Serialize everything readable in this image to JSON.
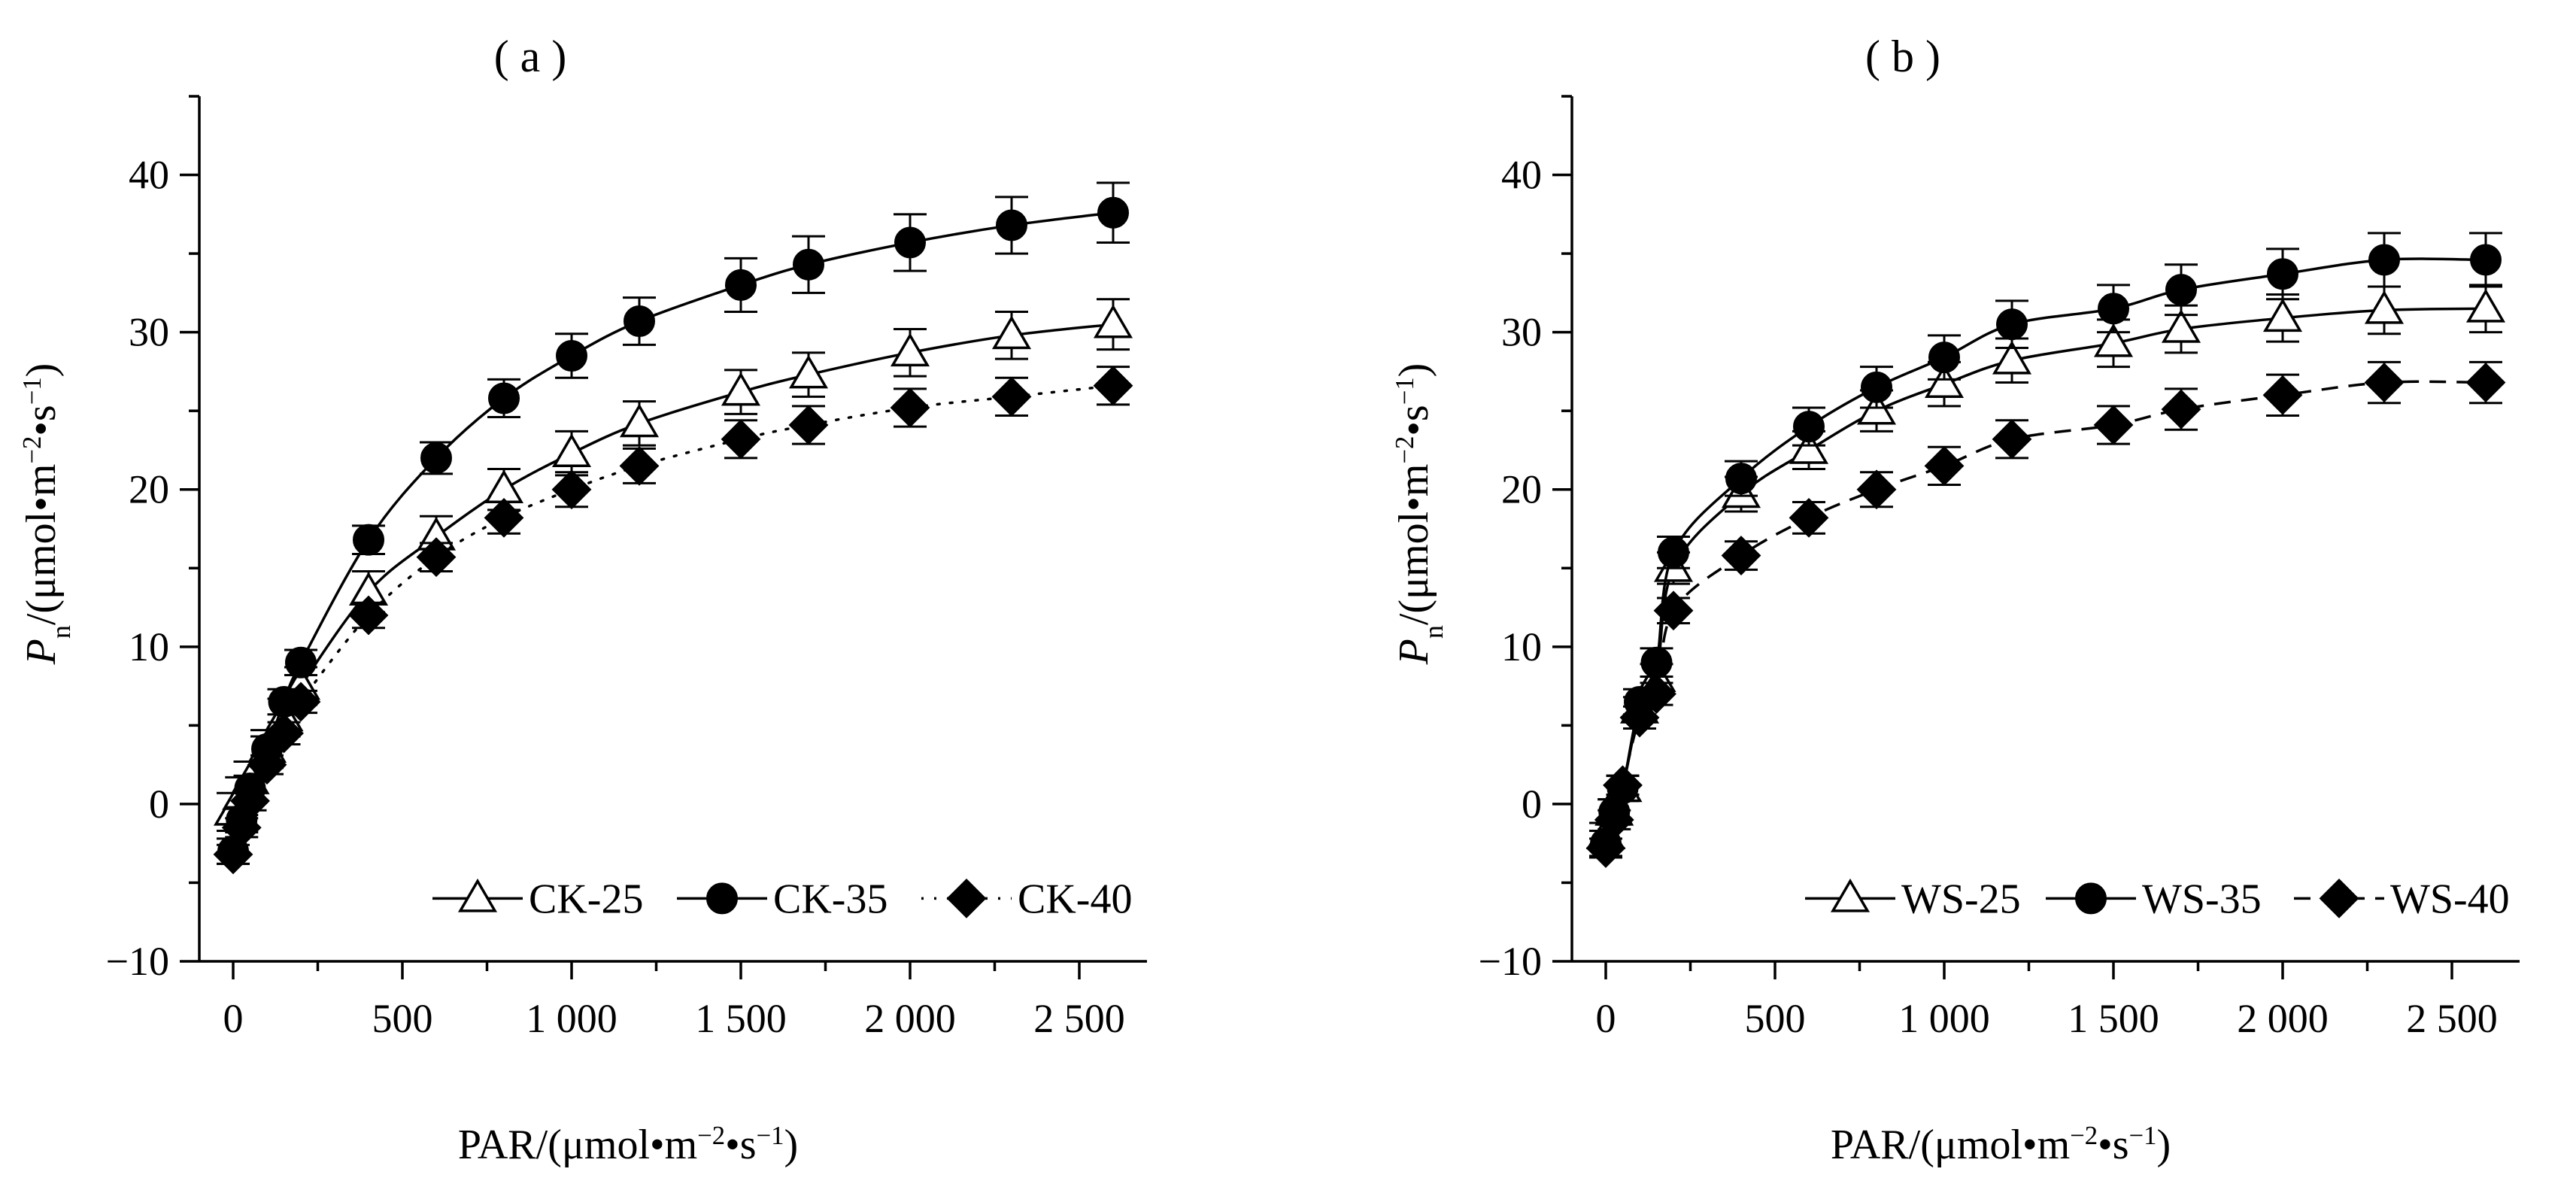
{
  "colors": {
    "ink": "#000000",
    "open_marker_fill": "#ffffff"
  },
  "markers": {
    "25": "triangle-open",
    "35": "circle-filled",
    "40": "diamond-filled"
  },
  "chart_data": [
    {
      "type": "line",
      "panel_label": "( a )",
      "x_label": {
        "base": "PAR/(μmol•m",
        "exp1": "−2",
        "mid": "•s",
        "exp2": "−1",
        "close": ")"
      },
      "y_label": {
        "italic": "P",
        "sub": "n",
        "rest": "/(μmol•m",
        "exp1": "−2",
        "mid": "•s",
        "exp2": "−1",
        "close": ")"
      },
      "xlim": [
        -100,
        2700
      ],
      "ylim": [
        -10,
        45
      ],
      "x_ticks": [
        0,
        500,
        1000,
        1500,
        2000,
        2500
      ],
      "x_tick_labels": [
        "0",
        "500",
        "1 000",
        "1 500",
        "2 000",
        "2 500"
      ],
      "y_ticks": [
        -10,
        0,
        10,
        20,
        30,
        40
      ],
      "y_tick_labels": [
        "−10",
        "0",
        "10",
        "20",
        "30",
        "40"
      ],
      "legend_position": "bottom-right",
      "series": [
        {
          "name": "CK-25",
          "key": "25",
          "line_style": "solid",
          "x": [
            0,
            25,
            50,
            100,
            150,
            200,
            400,
            600,
            800,
            1000,
            1200,
            1500,
            1700,
            2000,
            2300,
            2600
          ],
          "y": [
            -0.5,
            0.5,
            1.5,
            3.5,
            5.5,
            7.5,
            13.5,
            17.0,
            20.0,
            22.3,
            24.2,
            26.2,
            27.3,
            28.7,
            29.8,
            30.5
          ],
          "err": [
            1.2,
            1.2,
            1.2,
            1.2,
            1.2,
            1.2,
            1.3,
            1.3,
            1.3,
            1.4,
            1.4,
            1.4,
            1.4,
            1.5,
            1.5,
            1.6
          ]
        },
        {
          "name": "CK-35",
          "key": "35",
          "line_style": "solid",
          "x": [
            0,
            25,
            50,
            100,
            150,
            200,
            400,
            600,
            800,
            1000,
            1200,
            1500,
            1700,
            2000,
            2300,
            2600
          ],
          "y": [
            -3.0,
            -1.0,
            1.0,
            3.5,
            6.5,
            9.0,
            16.8,
            22.0,
            25.8,
            28.5,
            30.7,
            33.0,
            34.3,
            35.7,
            36.8,
            37.6
          ],
          "err": [
            0.8,
            0.8,
            0.8,
            0.8,
            0.8,
            0.8,
            0.9,
            1.0,
            1.2,
            1.4,
            1.5,
            1.7,
            1.8,
            1.8,
            1.8,
            1.9
          ]
        },
        {
          "name": "CK-40",
          "key": "40",
          "line_style": "dotted",
          "x": [
            0,
            25,
            50,
            100,
            150,
            200,
            400,
            600,
            800,
            1000,
            1200,
            1500,
            1700,
            2000,
            2300,
            2600
          ],
          "y": [
            -3.2,
            -1.5,
            0.2,
            2.5,
            4.5,
            6.5,
            12.0,
            15.7,
            18.2,
            20.0,
            21.5,
            23.2,
            24.1,
            25.2,
            25.9,
            26.6
          ],
          "err": [
            0.6,
            0.6,
            0.6,
            0.6,
            0.7,
            0.7,
            0.8,
            0.9,
            1.0,
            1.1,
            1.1,
            1.2,
            1.2,
            1.2,
            1.2,
            1.2
          ]
        }
      ]
    },
    {
      "type": "line",
      "panel_label": "( b )",
      "x_label": {
        "base": "PAR/(μmol•m",
        "exp1": "−2",
        "mid": "•s",
        "exp2": "−1",
        "close": ")"
      },
      "y_label": {
        "italic": "P",
        "sub": "n",
        "rest": "/(μmol•m",
        "exp1": "−2",
        "mid": "•s",
        "exp2": "−1",
        "close": ")"
      },
      "xlim": [
        -100,
        2700
      ],
      "ylim": [
        -10,
        45
      ],
      "x_ticks": [
        0,
        500,
        1000,
        1500,
        2000,
        2500
      ],
      "x_tick_labels": [
        "0",
        "500",
        "1 000",
        "1 500",
        "2 000",
        "2 500"
      ],
      "y_ticks": [
        -10,
        0,
        10,
        20,
        30,
        40
      ],
      "y_tick_labels": [
        "−10",
        "0",
        "10",
        "20",
        "30",
        "40"
      ],
      "legend_position": "bottom-right",
      "series": [
        {
          "name": "WS-25",
          "key": "25",
          "line_style": "solid",
          "x": [
            0,
            25,
            50,
            100,
            150,
            200,
            400,
            600,
            800,
            1000,
            1200,
            1500,
            1700,
            2000,
            2300,
            2600
          ],
          "y": [
            -2.0,
            -0.5,
            1.0,
            6.0,
            8.0,
            15.0,
            19.7,
            22.5,
            25.0,
            26.7,
            28.2,
            29.3,
            30.2,
            30.9,
            31.4,
            31.5
          ],
          "err": [
            0.8,
            0.8,
            0.8,
            0.8,
            0.9,
            1.0,
            1.1,
            1.2,
            1.3,
            1.4,
            1.4,
            1.5,
            1.5,
            1.5,
            1.5,
            1.5
          ]
        },
        {
          "name": "WS-35",
          "key": "35",
          "line_style": "solid",
          "x": [
            0,
            25,
            50,
            100,
            150,
            200,
            400,
            600,
            800,
            1000,
            1200,
            1500,
            1700,
            2000,
            2300,
            2600
          ],
          "y": [
            -2.5,
            -0.5,
            1.0,
            6.5,
            9.0,
            16.0,
            20.7,
            24.0,
            26.5,
            28.4,
            30.5,
            31.5,
            32.7,
            33.7,
            34.6,
            34.6
          ],
          "err": [
            0.8,
            0.8,
            0.8,
            0.8,
            0.9,
            1.0,
            1.1,
            1.2,
            1.3,
            1.4,
            1.5,
            1.5,
            1.6,
            1.6,
            1.7,
            1.7
          ]
        },
        {
          "name": "WS-40",
          "key": "40",
          "line_style": "dashed",
          "x": [
            0,
            25,
            50,
            100,
            150,
            200,
            400,
            600,
            800,
            1000,
            1200,
            1500,
            1700,
            2000,
            2300,
            2600
          ],
          "y": [
            -2.8,
            -1.0,
            1.2,
            5.5,
            7.0,
            12.3,
            15.8,
            18.2,
            20.0,
            21.5,
            23.2,
            24.1,
            25.1,
            26.0,
            26.8,
            26.8
          ],
          "err": [
            0.6,
            0.6,
            0.6,
            0.7,
            0.7,
            0.8,
            0.9,
            1.0,
            1.1,
            1.2,
            1.2,
            1.2,
            1.3,
            1.3,
            1.3,
            1.3
          ]
        }
      ]
    }
  ]
}
